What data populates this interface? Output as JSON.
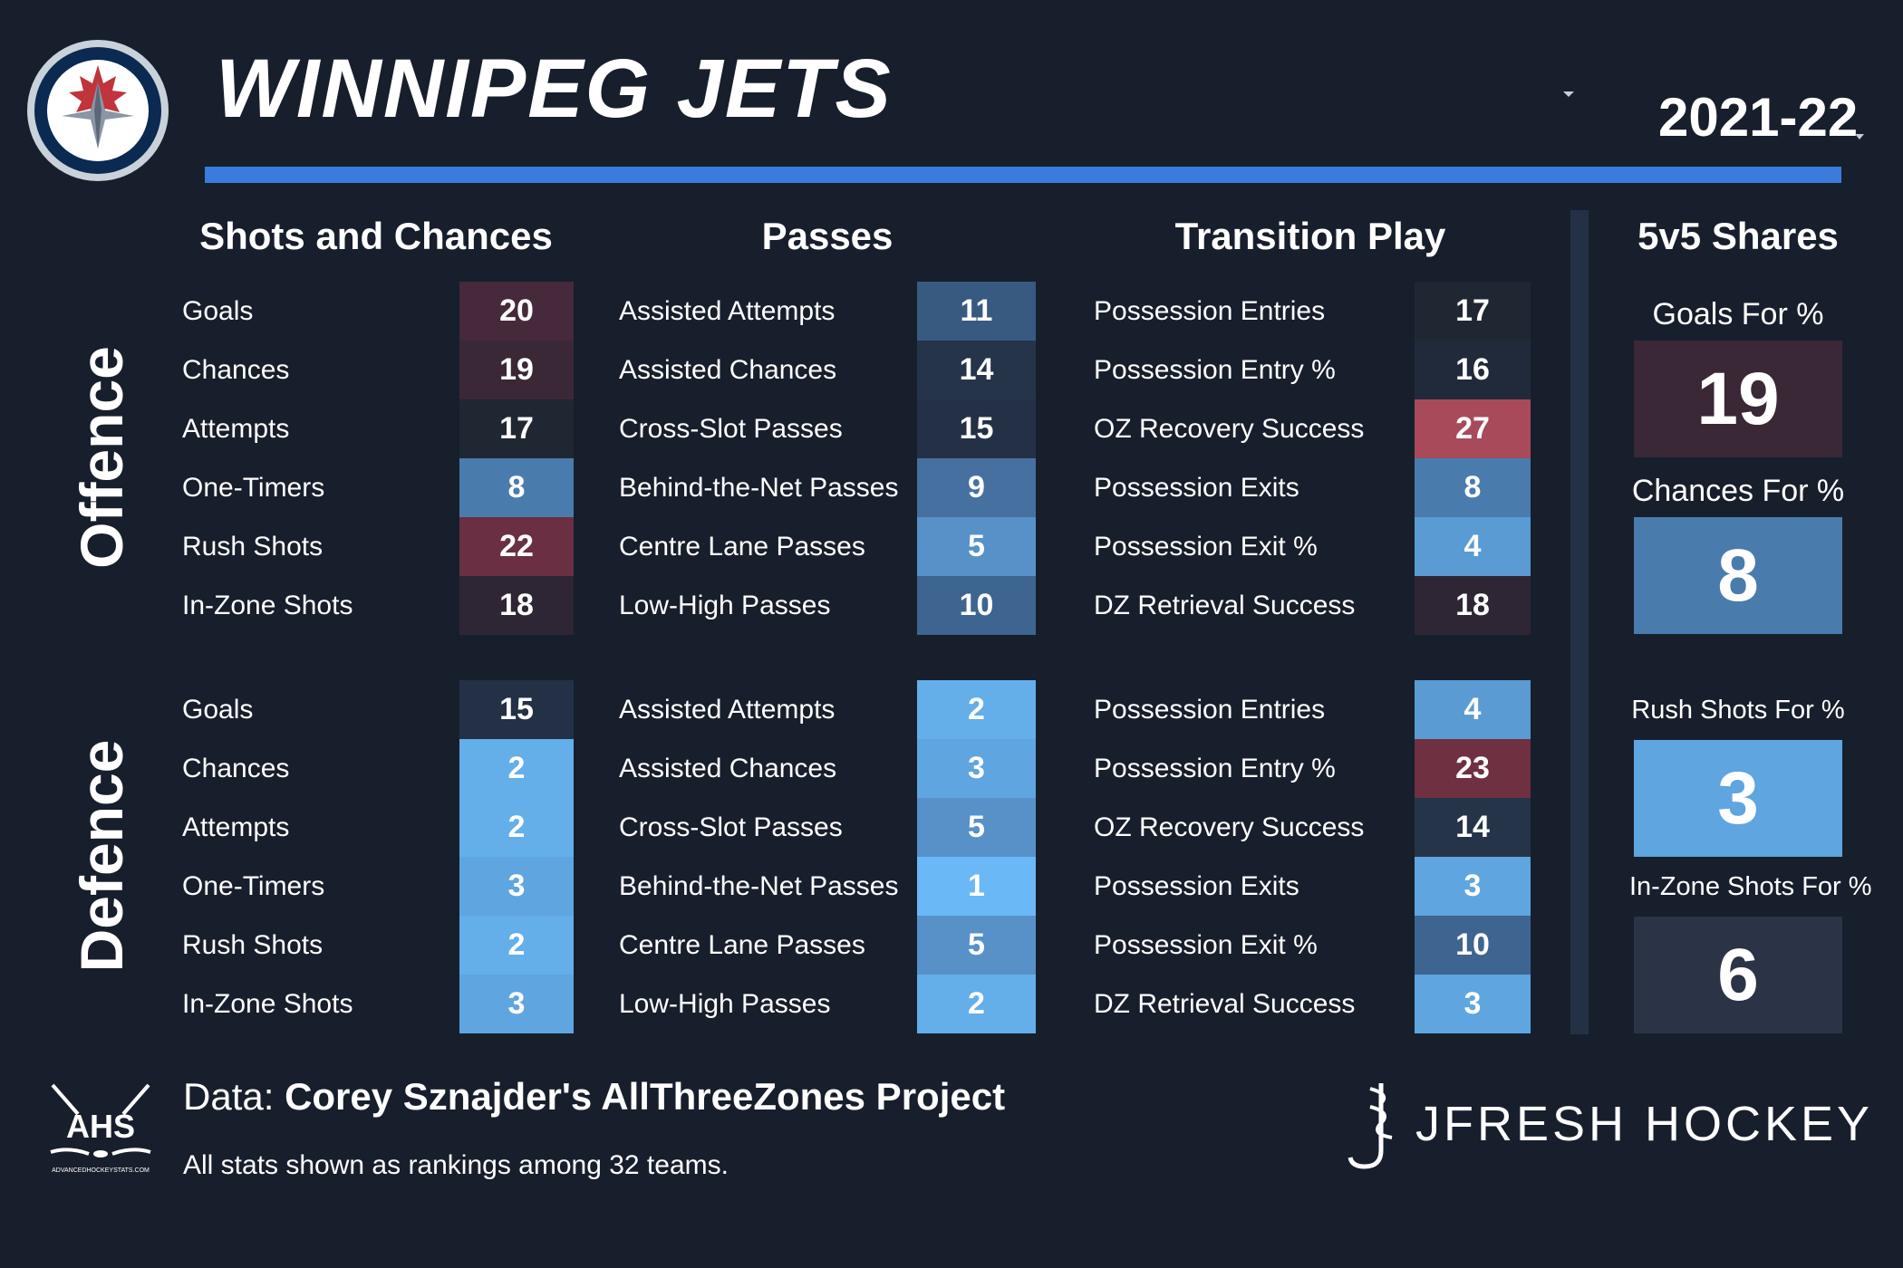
{
  "header": {
    "team_name": "WINNIPEG JETS",
    "season": "2021-22"
  },
  "sections": {
    "shots": "Shots and Chances",
    "passes": "Passes",
    "transition": "Transition Play",
    "shares": "5v5 Shares"
  },
  "side_labels": {
    "offence": "Offence",
    "defence": "Defence"
  },
  "offence": {
    "shots": [
      {
        "label": "Goals",
        "rank": 20
      },
      {
        "label": "Chances",
        "rank": 19
      },
      {
        "label": "Attempts",
        "rank": 17
      },
      {
        "label": "One-Timers",
        "rank": 8
      },
      {
        "label": "Rush Shots",
        "rank": 22
      },
      {
        "label": "In-Zone Shots",
        "rank": 18
      }
    ],
    "passes": [
      {
        "label": "Assisted Attempts",
        "rank": 11
      },
      {
        "label": "Assisted Chances",
        "rank": 14
      },
      {
        "label": "Cross-Slot Passes",
        "rank": 15
      },
      {
        "label": "Behind-the-Net Passes",
        "rank": 9
      },
      {
        "label": "Centre Lane Passes",
        "rank": 5
      },
      {
        "label": "Low-High Passes",
        "rank": 10
      }
    ],
    "transition": [
      {
        "label": "Possession Entries",
        "rank": 17
      },
      {
        "label": "Possession Entry %",
        "rank": 16
      },
      {
        "label": "OZ Recovery Success",
        "rank": 27
      },
      {
        "label": "Possession Exits",
        "rank": 8
      },
      {
        "label": "Possession Exit %",
        "rank": 4
      },
      {
        "label": "DZ Retrieval Success",
        "rank": 18
      }
    ]
  },
  "defence": {
    "shots": [
      {
        "label": "Goals",
        "rank": 15
      },
      {
        "label": "Chances",
        "rank": 2
      },
      {
        "label": "Attempts",
        "rank": 2
      },
      {
        "label": "One-Timers",
        "rank": 3
      },
      {
        "label": "Rush Shots",
        "rank": 2
      },
      {
        "label": "In-Zone Shots",
        "rank": 3
      }
    ],
    "passes": [
      {
        "label": "Assisted Attempts",
        "rank": 2
      },
      {
        "label": "Assisted Chances",
        "rank": 3
      },
      {
        "label": "Cross-Slot Passes",
        "rank": 5
      },
      {
        "label": "Behind-the-Net Passes",
        "rank": 1
      },
      {
        "label": "Centre Lane Passes",
        "rank": 5
      },
      {
        "label": "Low-High Passes",
        "rank": 2
      }
    ],
    "transition": [
      {
        "label": "Possession Entries",
        "rank": 4
      },
      {
        "label": "Possession Entry %",
        "rank": 23
      },
      {
        "label": "OZ Recovery Success",
        "rank": 14
      },
      {
        "label": "Possession Exits",
        "rank": 3
      },
      {
        "label": "Possession Exit %",
        "rank": 10
      },
      {
        "label": "DZ Retrieval Success",
        "rank": 3
      }
    ]
  },
  "shares": [
    {
      "label": "Goals For %",
      "rank": 19
    },
    {
      "label": "Chances For %",
      "rank": 8
    },
    {
      "label": "Rush Shots For %",
      "rank": 3
    },
    {
      "label": "In-Zone Shots For %",
      "rank": 6
    }
  ],
  "footer": {
    "data_prefix": "Data: ",
    "data_source": "Corey Sznajder's AllThreeZones Project",
    "footnote": "All stats shown as rankings among 32 teams.",
    "ahs_initials": "AHS",
    "ahs_url": "ADVANCEDHOCKEYSTATS.COM",
    "brand": "JFRESH HOCKEY"
  },
  "colors": {
    "background": "#171f2c",
    "accent_rule": "#3a7bdb",
    "divider": "#243044",
    "rank_scale": {
      "1": "#6ab8f5",
      "2": "#64aeea",
      "3": "#5fa5e0",
      "4": "#5b9bd4",
      "5": "#5791c8",
      "8": "#4a7bad",
      "9": "#46709f",
      "10": "#3d6590",
      "11": "#385a80",
      "14": "#253449",
      "15": "#233045",
      "16": "#202a3a",
      "17": "#1f2733",
      "18": "#2e2634",
      "19": "#3a2836",
      "20": "#46293b",
      "22": "#6a2f42",
      "23": "#6f3042",
      "27": "#a84a5a"
    }
  },
  "icons": {
    "team_logo": "jets-logo-icon",
    "team_dropdown": "chevron-down-icon",
    "season_dropdown": "chevron-down-icon",
    "ahs_logo": "ahs-logo-icon",
    "brand_logo": "jfresh-logo-icon"
  }
}
